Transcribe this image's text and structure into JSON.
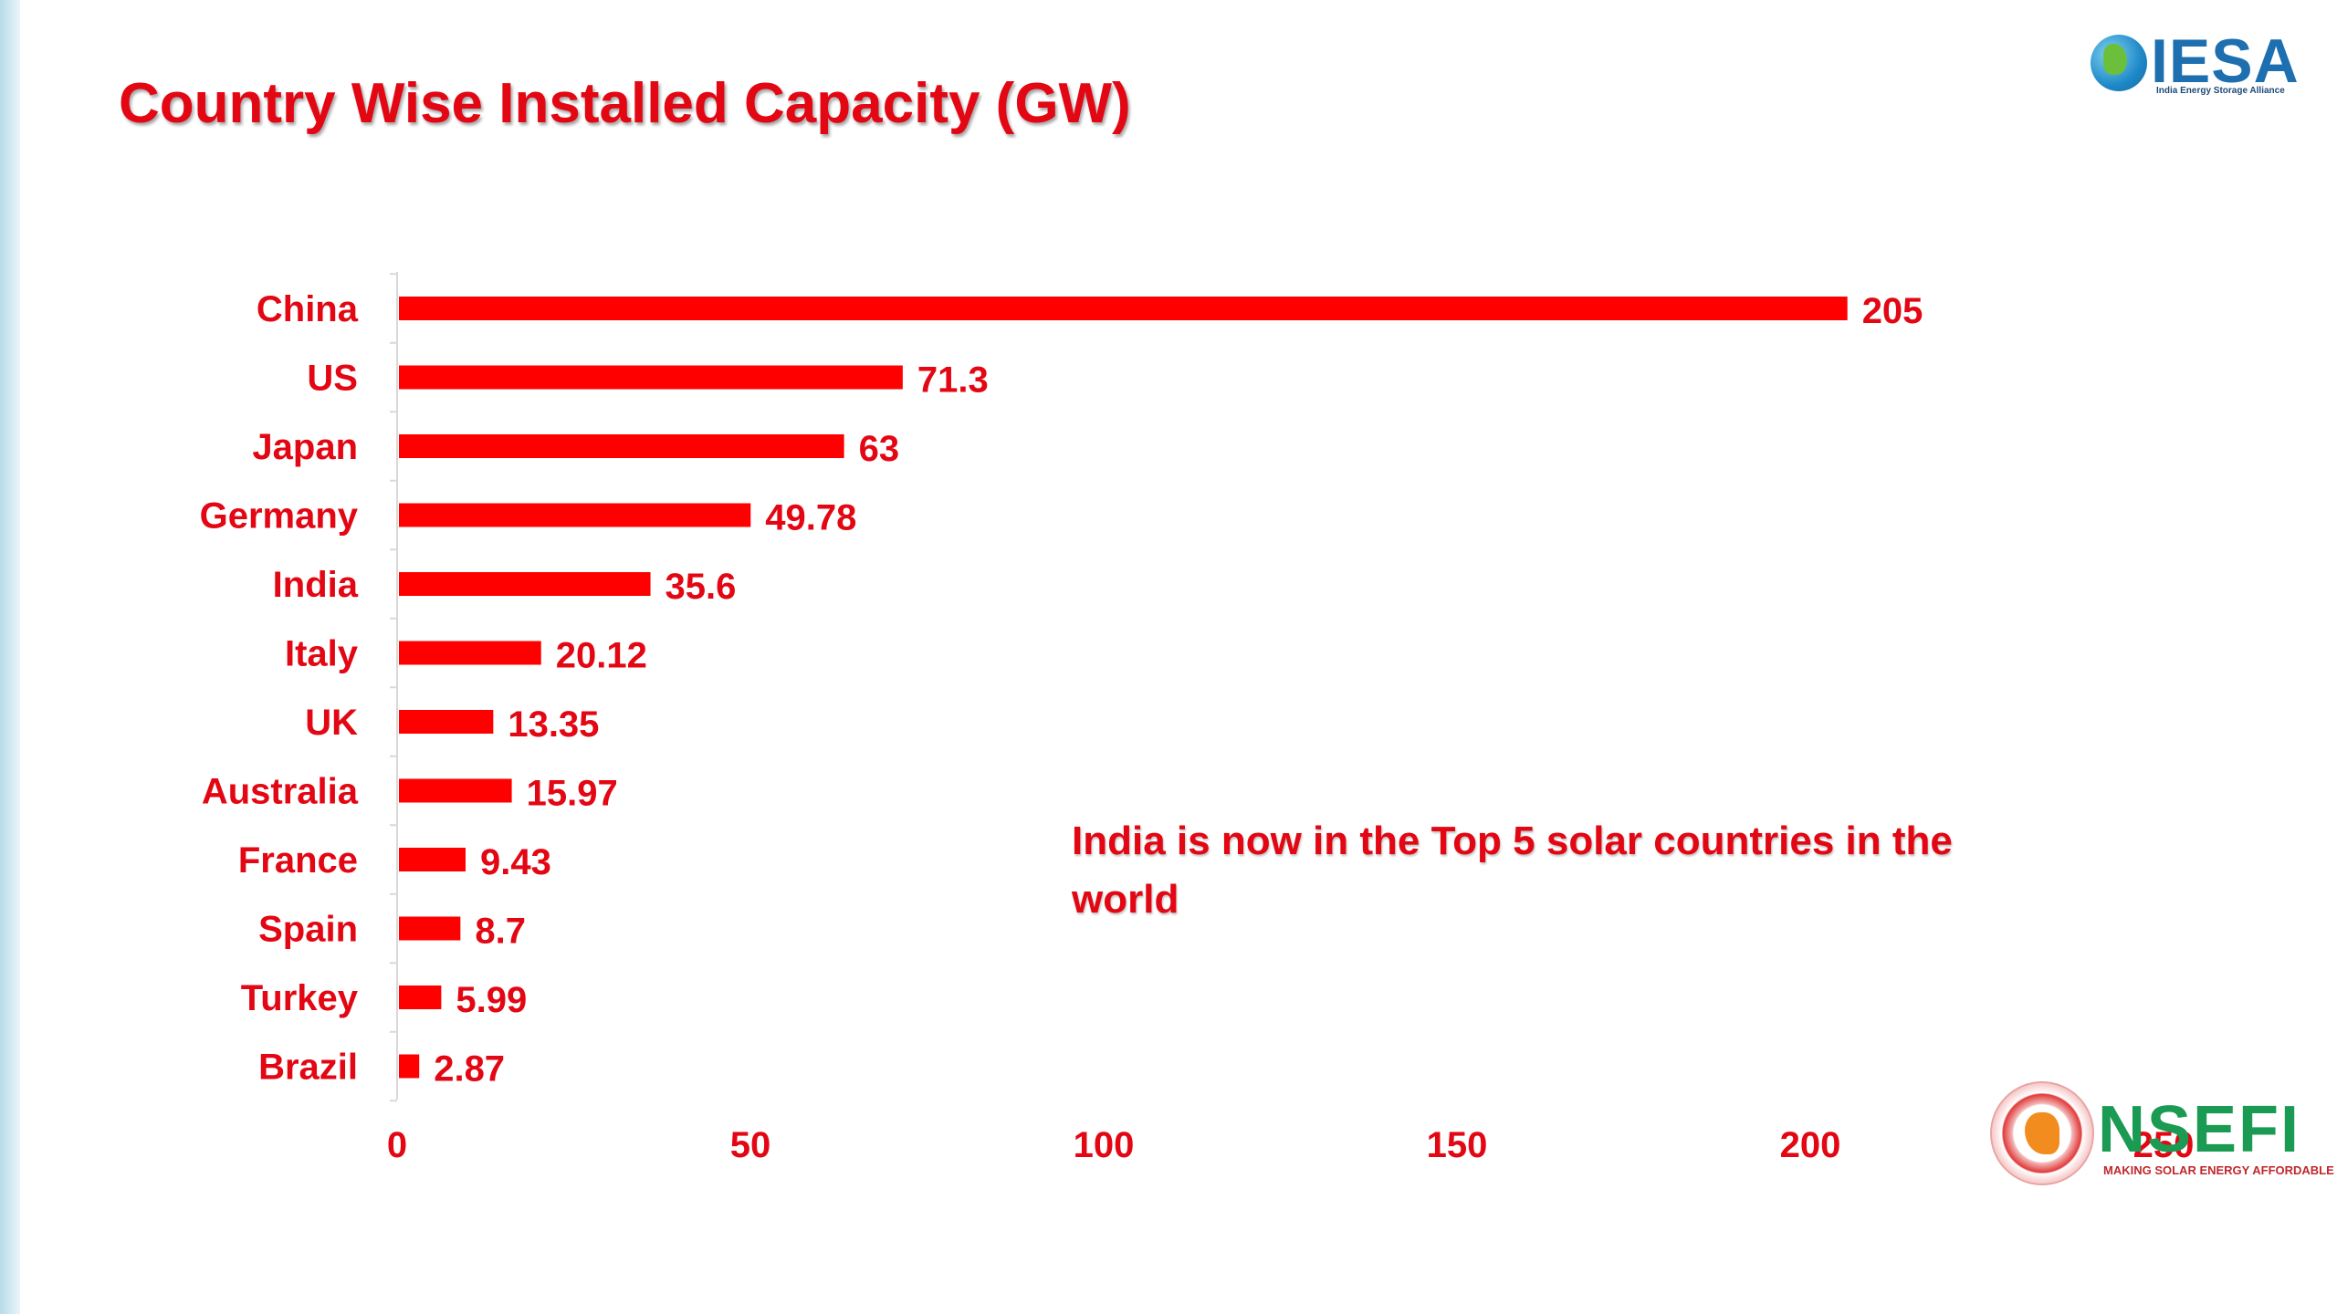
{
  "title": "Country Wise Installed Capacity (GW)",
  "callout": "India is now in the Top 5 solar countries in the world",
  "logos": {
    "iesa": {
      "word": "IESA",
      "tagline": "India Energy Storage Alliance"
    },
    "nsefi": {
      "word": "NSEFI",
      "tagline": "MAKING SOLAR ENERGY AFFORDABLE"
    }
  },
  "colors": {
    "accent": "#e30613",
    "bar": "#ff0000",
    "stripe": "#b7dbe9"
  },
  "chart_data": {
    "type": "bar",
    "orientation": "horizontal",
    "categories": [
      "China",
      "US",
      "Japan",
      "Germany",
      "India",
      "Italy",
      "UK",
      "Australia",
      "France",
      "Spain",
      "Turkey",
      "Brazil"
    ],
    "values": [
      205,
      71.3,
      63,
      49.78,
      35.6,
      20.12,
      13.35,
      15.97,
      9.43,
      8.7,
      5.99,
      2.87
    ],
    "value_labels": [
      "205",
      "71.3",
      "63",
      "49.78",
      "35.6",
      "20.12",
      "13.35",
      "15.97",
      "9.43",
      "8.7",
      "5.99",
      "2.87"
    ],
    "xlim": [
      0,
      250
    ],
    "x_ticks": [
      "0",
      "50",
      "100",
      "150",
      "200",
      "250"
    ],
    "title": "Country Wise Installed Capacity (GW)",
    "xlabel": "",
    "ylabel": "",
    "grid": false,
    "legend": "none"
  }
}
